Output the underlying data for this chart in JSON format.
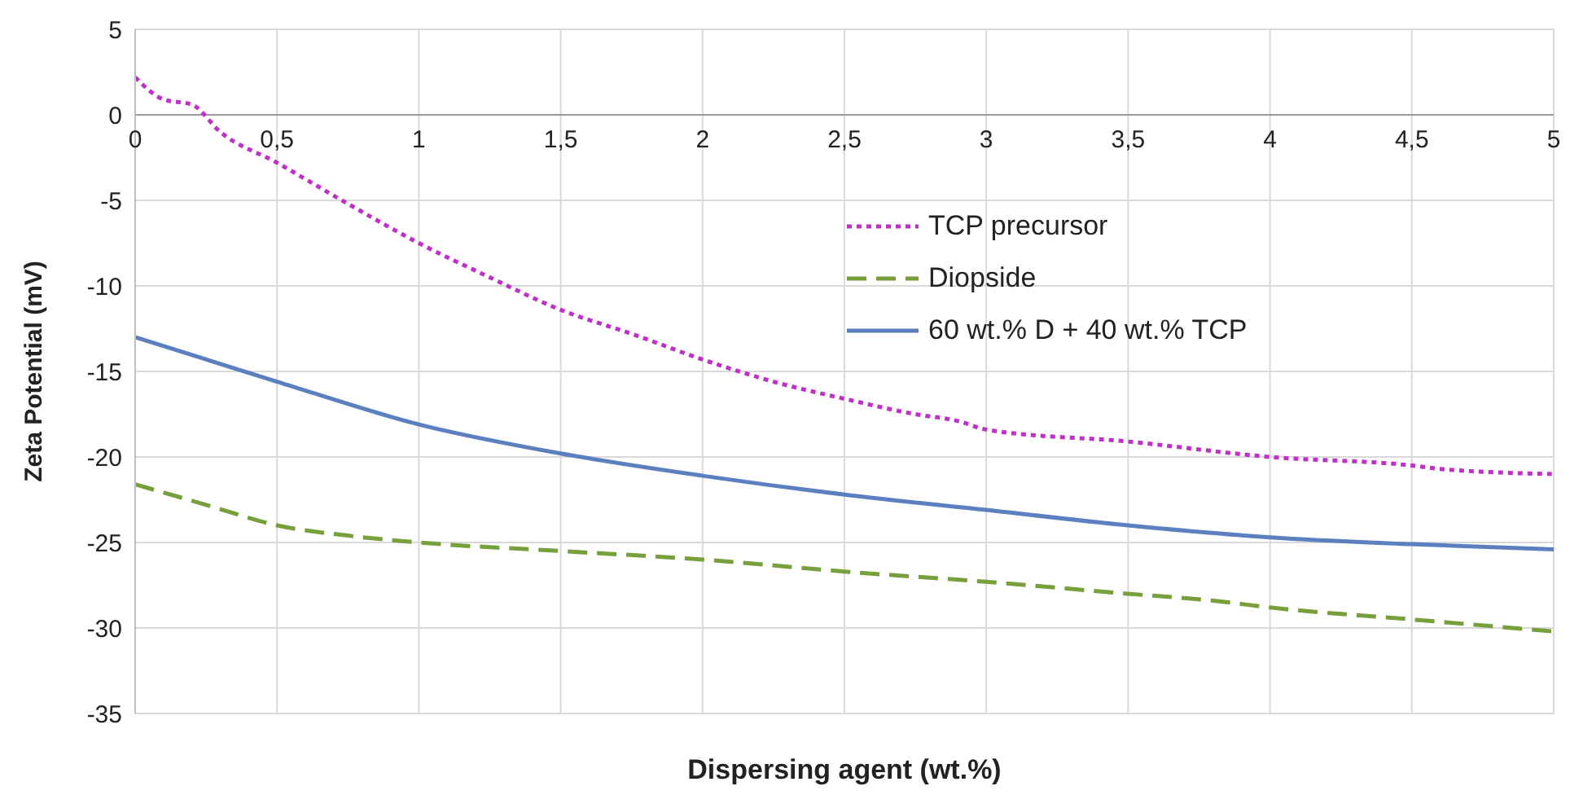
{
  "chart_data": {
    "type": "line",
    "xlabel": "Dispersing agent (wt.%)",
    "ylabel": "Zeta Potential (mV)",
    "xlim": [
      0,
      5
    ],
    "xticks": [
      0,
      {
        "value": 0.5,
        "label": "0,5"
      },
      1,
      {
        "value": 1.5,
        "label": "1,5"
      },
      2,
      {
        "value": 2.5,
        "label": "2,5"
      },
      3,
      {
        "value": 3.5,
        "label": "3,5"
      },
      4,
      {
        "value": 4.5,
        "label": "4,5"
      },
      5
    ],
    "ylim": [
      -35,
      5
    ],
    "yticks": [
      -35,
      -30,
      -25,
      -20,
      -15,
      -10,
      -5,
      0,
      5
    ],
    "grid": true,
    "legend": "right",
    "marker": "none",
    "series": [
      {
        "name": "TCP precursor",
        "color": "#c030c8",
        "line_style": "dotted",
        "x": [
          0,
          0.1,
          0.2,
          0.3,
          0.5,
          0.75,
          1,
          1.25,
          1.5,
          1.75,
          2,
          2.25,
          2.5,
          2.75,
          2.9,
          3,
          3.5,
          4,
          4.5,
          4.6,
          5
        ],
        "values": [
          2.2,
          0.9,
          0.6,
          -1,
          -2.8,
          -5.2,
          -7.5,
          -9.5,
          -11.4,
          -12.8,
          -14.3,
          -15.6,
          -16.6,
          -17.5,
          -17.9,
          -18.4,
          -19.1,
          -20,
          -20.5,
          -20.7,
          -21
        ]
      },
      {
        "name": "Diopside",
        "color": "#77a03c",
        "line_style": "dashed",
        "x": [
          0,
          0.25,
          0.5,
          0.75,
          1,
          1.5,
          2,
          2.5,
          3,
          3.5,
          3.8,
          4,
          4.5,
          5
        ],
        "values": [
          -21.6,
          -22.8,
          -24,
          -24.6,
          -25,
          -25.5,
          -26,
          -26.7,
          -27.3,
          -28,
          -28.4,
          -28.8,
          -29.5,
          -30.2
        ]
      },
      {
        "name": "60 wt.% D + 40 wt.% TCP",
        "color": "#5b7fbf",
        "line_style": "solid",
        "x": [
          0,
          0.5,
          1,
          1.5,
          2,
          2.5,
          3,
          3.5,
          4,
          4.5,
          5
        ],
        "values": [
          -13,
          -15.6,
          -18.1,
          -19.8,
          -21.1,
          -22.2,
          -23.1,
          -24,
          -24.7,
          -25.1,
          -25.4
        ]
      }
    ]
  }
}
